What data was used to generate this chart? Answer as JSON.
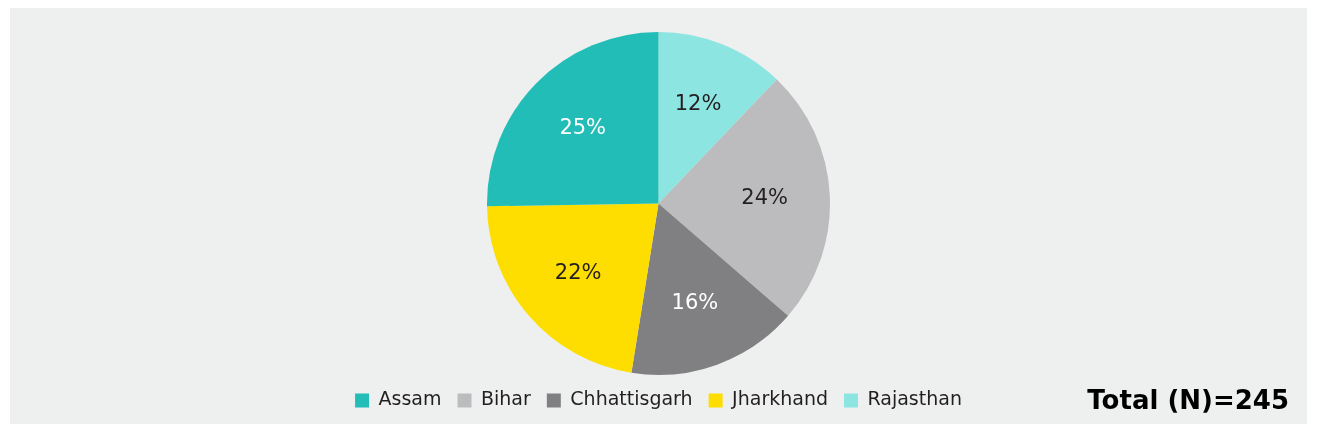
{
  "chart_data": {
    "type": "pie",
    "categories": [
      "Rajasthan",
      "Bihar",
      "Chhattisgarh",
      "Jharkhand",
      "Assam"
    ],
    "values": [
      12,
      24,
      16,
      22,
      25
    ],
    "value_labels": [
      "12%",
      "24%",
      "16%",
      "22%",
      "25%"
    ],
    "colors": [
      "#8de5e1",
      "#bcbcbe",
      "#808083",
      "#fedd00",
      "#23bdb8"
    ],
    "legend": "bottom",
    "annotations": [
      "Total (N)=245"
    ]
  }
}
